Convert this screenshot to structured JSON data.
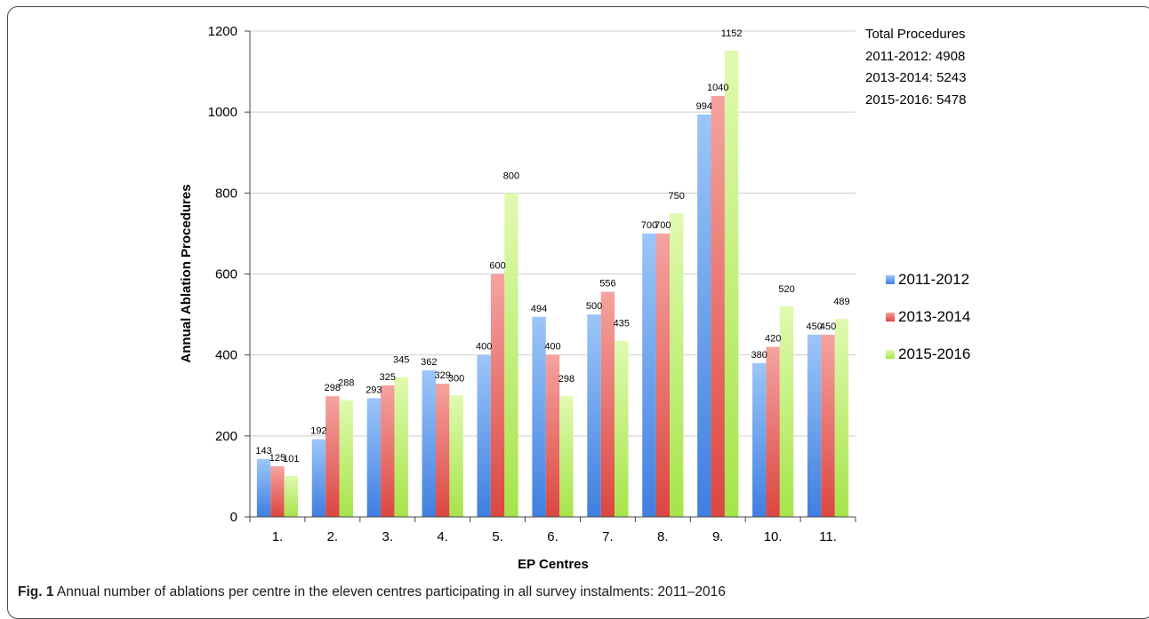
{
  "colors": {
    "s2011": "#6fa8f0",
    "s2013": "#f07c78",
    "s2015": "#c3ee80",
    "grid": "#cfcfcf",
    "axis": "#444444"
  },
  "totals": {
    "heading": "Total Procedures",
    "lines": [
      "2011-2012: 4908",
      "2013-2014: 5243",
      "2015-2016: 5478"
    ]
  },
  "caption": {
    "label": "Fig. 1",
    "text": " Annual number of ablations per centre in the eleven centres participating in all survey instalments: 2011–2016"
  },
  "chart_data": {
    "type": "bar",
    "title": "",
    "xlabel": "EP Centres",
    "ylabel": "Annual Ablation Procedures",
    "ylim": [
      0,
      1200
    ],
    "yticks": [
      0,
      200,
      400,
      600,
      800,
      1000,
      1200
    ],
    "grid": true,
    "legend_position": "right",
    "categories": [
      "1.",
      "2.",
      "3.",
      "4.",
      "5.",
      "6.",
      "7.",
      "8.",
      "9.",
      "10.",
      "11."
    ],
    "series": [
      {
        "name": "2011-2012",
        "color_key": "s2011",
        "values": [
          143,
          192,
          293,
          362,
          400,
          494,
          500,
          700,
          994,
          380,
          450
        ]
      },
      {
        "name": "2013-2014",
        "color_key": "s2013",
        "values": [
          125,
          298,
          325,
          329,
          600,
          400,
          556,
          700,
          1040,
          420,
          450
        ]
      },
      {
        "name": "2015-2016",
        "color_key": "s2015",
        "values": [
          101,
          288,
          345,
          300,
          800,
          298,
          435,
          750,
          1152,
          520,
          489
        ]
      }
    ]
  }
}
